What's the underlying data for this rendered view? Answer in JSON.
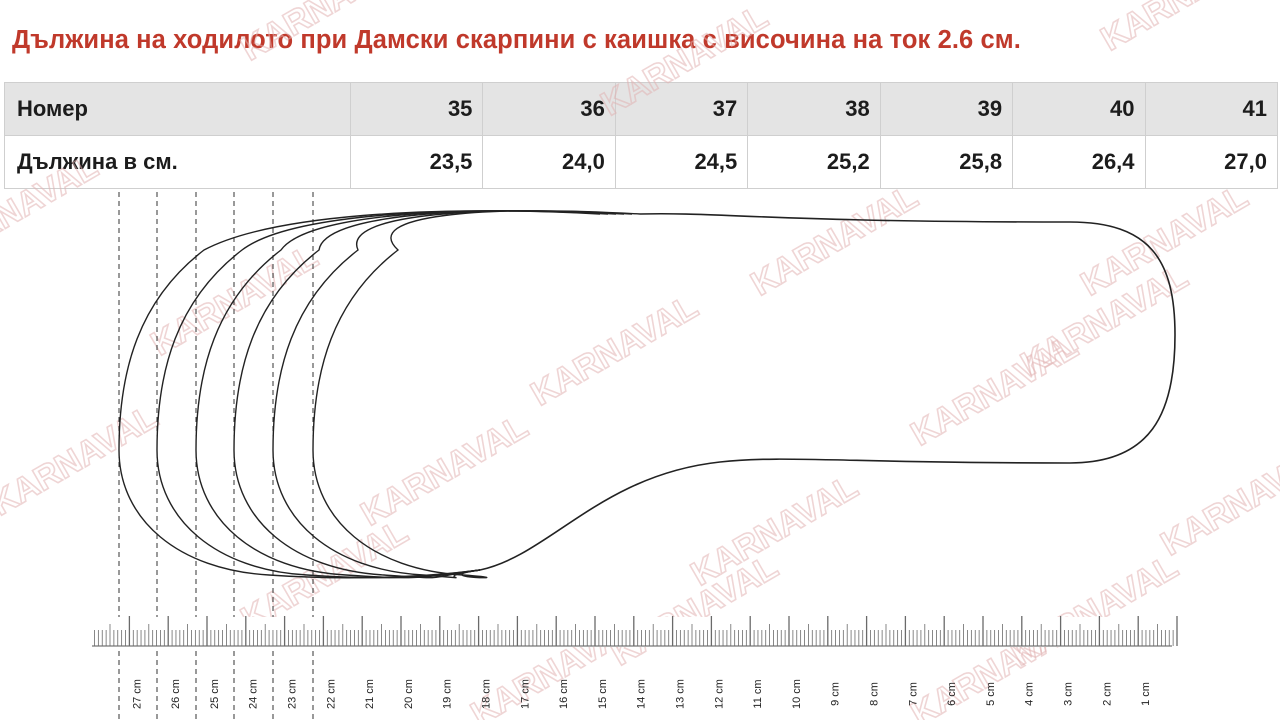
{
  "title": "Дължина на ходилото при Дамски скарпини с каишка с височина на ток 2.6 см.",
  "watermark": "KARNAVAL",
  "table": {
    "row1_label": "Номер",
    "row2_label": "Дължина в см.",
    "sizes": [
      "35",
      "36",
      "37",
      "38",
      "39",
      "40",
      "41"
    ],
    "lengths": [
      "23,5",
      "24,0",
      "24,5",
      "25,2",
      "25,8",
      "26,4",
      "27,0"
    ]
  },
  "ruler": {
    "labels": [
      "27 cm",
      "26 cm",
      "25 cm",
      "24 cm",
      "23 cm",
      "22 cm",
      "21 cm",
      "20 cm",
      "19 cm",
      "18 cm",
      "17 cm",
      "16 cm",
      "15 cm",
      "14 cm",
      "13 cm",
      "12 cm",
      "11 cm",
      "10 cm",
      "9 cm",
      "8 cm",
      "7 cm",
      "6 cm",
      "5 cm",
      "4 cm",
      "3 cm",
      "2 cm",
      "1 cm"
    ]
  },
  "colors": {
    "title": "#c0392b",
    "header_bg": "#e4e4e4",
    "watermark": "#e2b3b3",
    "outline": "#222222"
  }
}
